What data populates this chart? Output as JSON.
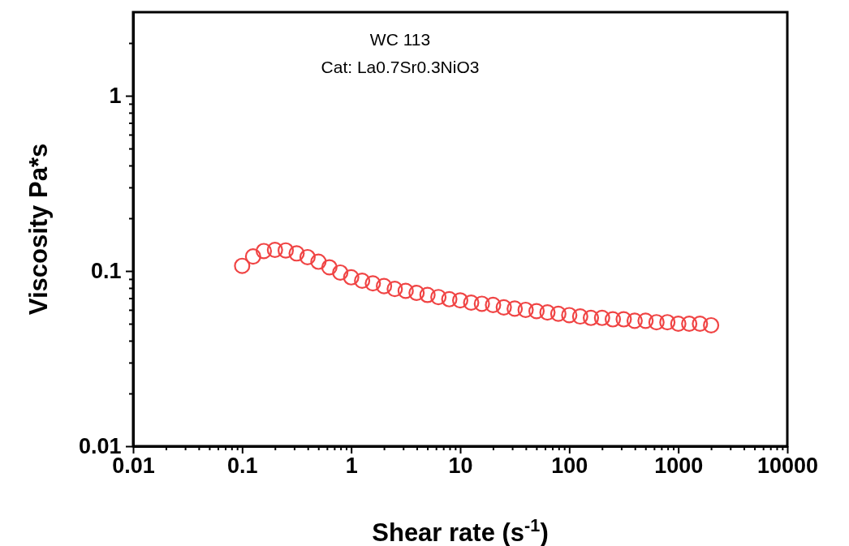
{
  "chart_data": {
    "type": "scatter",
    "title": "WC 113",
    "subtitle": "Cat: La0.7Sr0.3NiO3",
    "xlabel": "Shear rate (s$^{-1}$)",
    "ylabel": "Viscosity Pa*s",
    "log": "xy",
    "marker": "circle",
    "xlim": [
      0.01,
      10000
    ],
    "ylim": [
      0.01,
      3
    ],
    "xticks": [
      0.01,
      {
        "value": 0.02,
        "label": null
      },
      {
        "value": 0.03,
        "label": null
      },
      {
        "value": 0.04,
        "label": null
      },
      {
        "value": 0.05,
        "label": null
      },
      {
        "value": 0.06,
        "label": null
      },
      {
        "value": 0.07,
        "label": null
      },
      {
        "value": 0.08,
        "label": null
      },
      {
        "value": 0.09,
        "label": null
      },
      0.1,
      {
        "value": 0.2,
        "label": null
      },
      {
        "value": 0.3,
        "label": null
      },
      {
        "value": 0.4,
        "label": null
      },
      {
        "value": 0.5,
        "label": null
      },
      {
        "value": 0.6,
        "label": null
      },
      {
        "value": 0.7,
        "label": null
      },
      {
        "value": 0.8,
        "label": null
      },
      {
        "value": 0.9,
        "label": null
      },
      1,
      {
        "value": 2,
        "label": null
      },
      {
        "value": 3,
        "label": null
      },
      {
        "value": 4,
        "label": null
      },
      {
        "value": 5,
        "label": null
      },
      {
        "value": 6,
        "label": null
      },
      {
        "value": 7,
        "label": null
      },
      {
        "value": 8,
        "label": null
      },
      {
        "value": 9,
        "label": null
      },
      10,
      {
        "value": 20,
        "label": null
      },
      {
        "value": 30,
        "label": null
      },
      {
        "value": 40,
        "label": null
      },
      {
        "value": 50,
        "label": null
      },
      {
        "value": 60,
        "label": null
      },
      {
        "value": 70,
        "label": null
      },
      {
        "value": 80,
        "label": null
      },
      {
        "value": 90,
        "label": null
      },
      100,
      {
        "value": 200,
        "label": null
      },
      {
        "value": 300,
        "label": null
      },
      {
        "value": 400,
        "label": null
      },
      {
        "value": 500,
        "label": null
      },
      {
        "value": 600,
        "label": null
      },
      {
        "value": 700,
        "label": null
      },
      {
        "value": 800,
        "label": null
      },
      {
        "value": 900,
        "label": null
      },
      1000,
      {
        "value": 2000,
        "label": null
      },
      {
        "value": 3000,
        "label": null
      },
      {
        "value": 4000,
        "label": null
      },
      {
        "value": 5000,
        "label": null
      },
      {
        "value": 6000,
        "label": null
      },
      {
        "value": 7000,
        "label": null
      },
      {
        "value": 8000,
        "label": null
      },
      {
        "value": 9000,
        "label": null
      },
      10000
    ],
    "yticks": [
      0.01,
      {
        "value": 0.02,
        "label": null
      },
      {
        "value": 0.03,
        "label": null
      },
      {
        "value": 0.04,
        "label": null
      },
      {
        "value": 0.05,
        "label": null
      },
      {
        "value": 0.06,
        "label": null
      },
      {
        "value": 0.07,
        "label": null
      },
      {
        "value": 0.08,
        "label": null
      },
      {
        "value": 0.09,
        "label": null
      },
      0.1,
      {
        "value": 0.2,
        "label": null
      },
      {
        "value": 0.3,
        "label": null
      },
      {
        "value": 0.4,
        "label": null
      },
      {
        "value": 0.5,
        "label": null
      },
      {
        "value": 0.6,
        "label": null
      },
      {
        "value": 0.7,
        "label": null
      },
      {
        "value": 0.8,
        "label": null
      },
      {
        "value": 0.9,
        "label": null
      },
      1,
      {
        "value": 2,
        "label": null
      }
    ],
    "series": [
      {
        "color": "#f04444",
        "x": [
          0.1,
          0.126,
          0.158,
          0.2,
          0.251,
          0.316,
          0.398,
          0.501,
          0.631,
          0.794,
          1,
          1.26,
          1.58,
          2,
          2.51,
          3.16,
          3.98,
          5.01,
          6.31,
          7.94,
          10,
          12.6,
          15.8,
          20,
          25.1,
          31.6,
          39.8,
          50.1,
          63.1,
          79.4,
          100,
          126,
          158,
          200,
          251,
          316,
          398,
          501,
          631,
          794,
          1000,
          1260,
          1580,
          2000
        ],
        "values": [
          0.107,
          0.121,
          0.13,
          0.132,
          0.131,
          0.126,
          0.12,
          0.113,
          0.105,
          0.098,
          0.092,
          0.088,
          0.085,
          0.082,
          0.079,
          0.077,
          0.075,
          0.073,
          0.071,
          0.069,
          0.068,
          0.066,
          0.065,
          0.064,
          0.062,
          0.061,
          0.06,
          0.059,
          0.058,
          0.057,
          0.056,
          0.055,
          0.054,
          0.054,
          0.053,
          0.053,
          0.052,
          0.052,
          0.051,
          0.051,
          0.05,
          0.05,
          0.05,
          0.049
        ]
      }
    ]
  }
}
